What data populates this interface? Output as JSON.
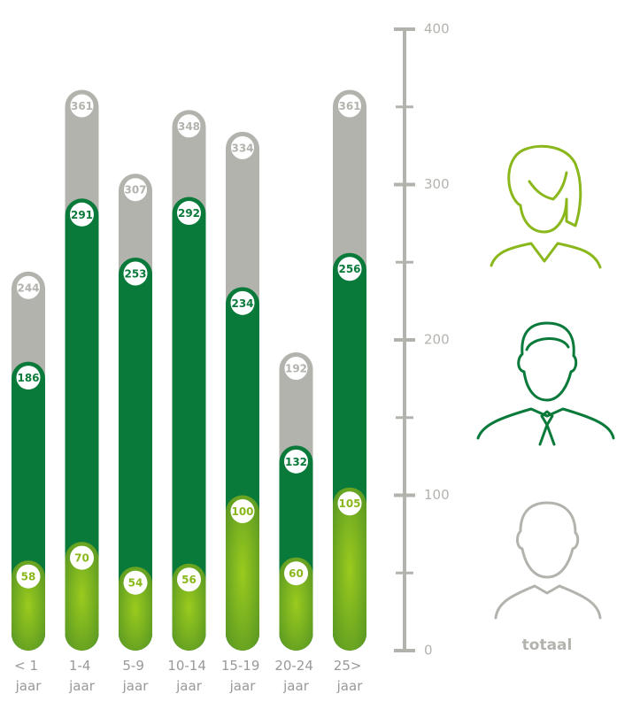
{
  "chart_data": {
    "type": "overlapping-bar",
    "categories": [
      "< 1 jaar",
      "1-4 jaar",
      "5-9 jaar",
      "10-14 jaar",
      "15-19 jaar",
      "20-24 jaar",
      "25> jaar"
    ],
    "series": [
      {
        "name": "totaal",
        "color": "#b3b3ae",
        "values": [
          244,
          361,
          307,
          348,
          334,
          192,
          361
        ]
      },
      {
        "color": "#0a7a3b",
        "values": [
          186,
          291,
          253,
          292,
          234,
          132,
          256
        ]
      },
      {
        "color": "#8ab81c",
        "values": [
          58,
          70,
          54,
          56,
          100,
          60,
          105
        ]
      }
    ],
    "ylim": [
      0,
      400
    ],
    "yticks": [
      0,
      100,
      200,
      300,
      400
    ],
    "yminorticks": [
      50,
      150,
      250,
      350
    ]
  }
}
